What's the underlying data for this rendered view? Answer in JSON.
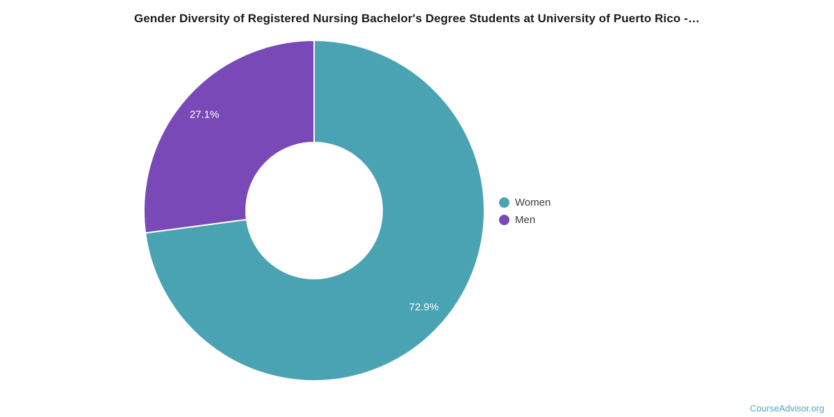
{
  "chart_data": {
    "type": "pie",
    "title": "Gender Diversity of Registered Nursing Bachelor's Degree Students at University of Puerto Rico -…",
    "labels": [
      "Women",
      "Men"
    ],
    "values": [
      72.9,
      27.1
    ],
    "value_labels": [
      "72.9%",
      "27.1%"
    ],
    "colors": [
      "#4AA3B2",
      "#7A49B8"
    ],
    "slice_label_color": "#FFFFFF",
    "donut": true,
    "donut_inner_ratio": 0.4,
    "start_angle_deg": 0,
    "direction": "clockwise",
    "legend_position": "right",
    "background_color": "#FFFFFF"
  },
  "footer": {
    "watermark": "CourseAdvisor.org",
    "watermark_color": "#4FA6C5"
  }
}
